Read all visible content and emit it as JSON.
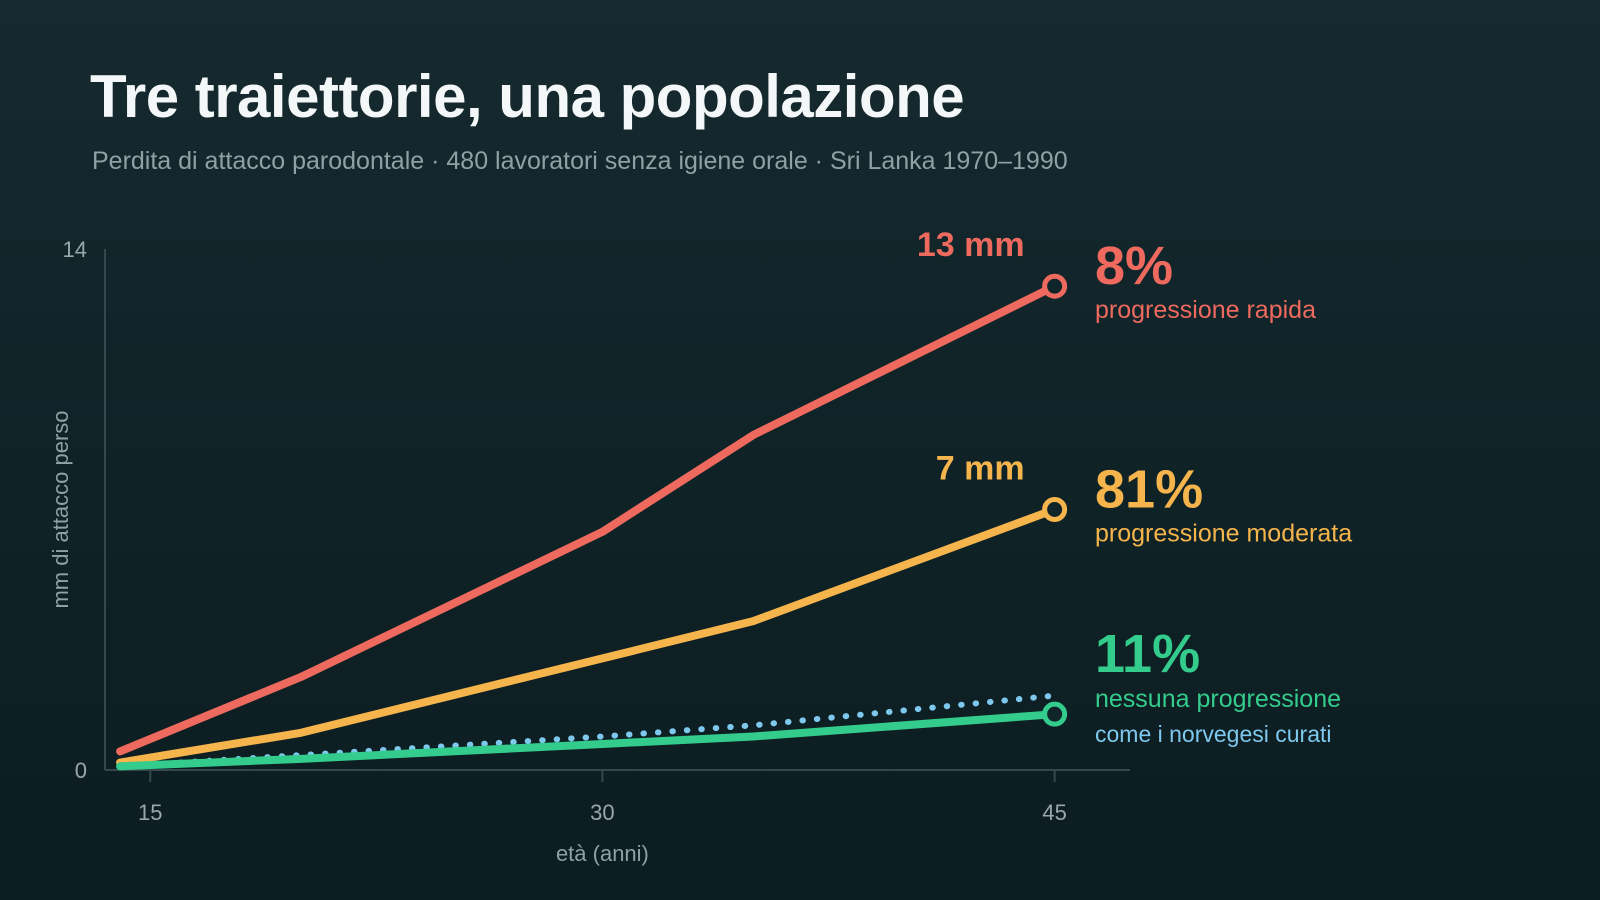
{
  "header": {
    "title": "Tre traiettorie, una popolazione",
    "subtitle": "Perdita di attacco parodontale · 480 lavoratori senza igiene orale · Sri Lanka 1970–1990"
  },
  "chart_data": {
    "type": "line",
    "xlabel": "età (anni)",
    "ylabel": "mm di attacco perso",
    "xlim": [
      13.5,
      47.5
    ],
    "ylim": [
      0,
      14
    ],
    "x_ticks": [
      15,
      30,
      45
    ],
    "y_ticks": [
      0,
      14
    ],
    "grid": false,
    "series": [
      {
        "id": "rapid",
        "color": "#ee6a5e",
        "style": "solid",
        "x": [
          14,
          20,
          30,
          35,
          45
        ],
        "y": [
          0.5,
          2.5,
          6.4,
          9.0,
          13.0
        ],
        "end_value": "13 mm",
        "pct": "8%",
        "desc": "progressione rapida"
      },
      {
        "id": "moderate",
        "color": "#f6b44c",
        "style": "solid",
        "x": [
          14,
          20,
          30,
          35,
          45
        ],
        "y": [
          0.2,
          1.0,
          3.0,
          4.0,
          7.0
        ],
        "end_value": "7 mm",
        "pct": "81%",
        "desc": "progressione moderata"
      },
      {
        "id": "none",
        "color": "#34cc8c",
        "style": "solid",
        "x": [
          14,
          20,
          30,
          35,
          45
        ],
        "y": [
          0.1,
          0.3,
          0.7,
          0.9,
          1.5
        ],
        "pct": "11%",
        "desc": "nessuna progressione"
      },
      {
        "id": "norwegian",
        "color": "#7ec8ee",
        "style": "dotted",
        "x": [
          16,
          20,
          30,
          35,
          45
        ],
        "y": [
          0.2,
          0.4,
          0.9,
          1.2,
          2.0
        ],
        "desc": "come i norvegesi curati"
      }
    ]
  }
}
